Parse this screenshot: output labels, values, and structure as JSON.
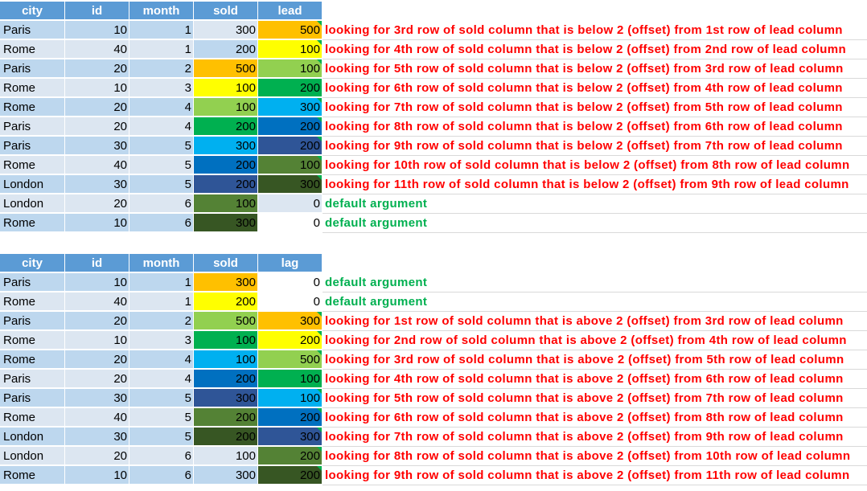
{
  "table1": {
    "headers": [
      "city",
      "id",
      "month",
      "sold",
      "lead"
    ],
    "rows": [
      {
        "city": "Paris",
        "id": "10",
        "month": "1",
        "sold": "300",
        "val": "500",
        "sold_color": "#dce6f1",
        "val_color": "#ffc000",
        "note": "looking for 3rd row of sold column that is below 2 (offset) from 1st row of lead column",
        "note_color": "red"
      },
      {
        "city": "Rome",
        "id": "40",
        "month": "1",
        "sold": "200",
        "val": "100",
        "sold_color": "#bdd7ee",
        "val_color": "#ffff00",
        "note": "looking for 4th row of sold column that is below 2 (offset) from 2nd row of lead column",
        "note_color": "red"
      },
      {
        "city": "Paris",
        "id": "20",
        "month": "2",
        "sold": "500",
        "val": "100",
        "sold_color": "#ffc000",
        "val_color": "#92d050",
        "note": "looking for 5th  row of sold column that is below 2 (offset) from 3rd row of lead column",
        "note_color": "red"
      },
      {
        "city": "Rome",
        "id": "10",
        "month": "3",
        "sold": "100",
        "val": "200",
        "sold_color": "#ffff00",
        "val_color": "#00b050",
        "note": "looking for 6th row of sold column that is below 2 (offset) from 4th row of lead column",
        "note_color": "red"
      },
      {
        "city": "Rome",
        "id": "20",
        "month": "4",
        "sold": "100",
        "val": "300",
        "sold_color": "#92d050",
        "val_color": "#00b0f0",
        "note": "looking for 7th row of sold column that is below 2 (offset) from 5th row of lead column",
        "note_color": "red"
      },
      {
        "city": "Paris",
        "id": "20",
        "month": "4",
        "sold": "200",
        "val": "200",
        "sold_color": "#00b050",
        "val_color": "#0070c0",
        "note": "looking for 8th row of sold column that is below 2 (offset) from 6th row of lead column",
        "note_color": "red"
      },
      {
        "city": "Paris",
        "id": "30",
        "month": "5",
        "sold": "300",
        "val": "200",
        "sold_color": "#00b0f0",
        "val_color": "#2f5597",
        "note": "looking for 9th row of sold column that is below 2 (offset) from 7th row of lead column",
        "note_color": "red"
      },
      {
        "city": "Rome",
        "id": "40",
        "month": "5",
        "sold": "200",
        "val": "100",
        "sold_color": "#0070c0",
        "val_color": "#548235",
        "note": "looking for 10th row of sold column that is below 2 (offset) from 8th row of lead column",
        "note_color": "red"
      },
      {
        "city": "London",
        "id": "30",
        "month": "5",
        "sold": "200",
        "val": "300",
        "sold_color": "#2f5597",
        "val_color": "#375623",
        "note": "looking for 11th row of sold column that is below 2 (offset) from 9th row of lead column",
        "note_color": "red"
      },
      {
        "city": "London",
        "id": "20",
        "month": "6",
        "sold": "100",
        "val": "0",
        "sold_color": "#548235",
        "val_color": "#dce6f1",
        "note": "default argument",
        "note_color": "green"
      },
      {
        "city": "Rome",
        "id": "10",
        "month": "6",
        "sold": "300",
        "val": "0",
        "sold_color": "#375623",
        "val_color": "#ffffff",
        "note": "default argument",
        "note_color": "green"
      }
    ]
  },
  "table2": {
    "headers": [
      "city",
      "id",
      "month",
      "sold",
      "lag"
    ],
    "rows": [
      {
        "city": "Paris",
        "id": "10",
        "month": "1",
        "sold": "300",
        "val": "0",
        "sold_color": "#ffc000",
        "val_color": "#ffffff",
        "note": "default argument",
        "note_color": "green"
      },
      {
        "city": "Rome",
        "id": "40",
        "month": "1",
        "sold": "200",
        "val": "0",
        "sold_color": "#ffff00",
        "val_color": "#ffffff",
        "note": "default argument",
        "note_color": "green"
      },
      {
        "city": "Paris",
        "id": "20",
        "month": "2",
        "sold": "500",
        "val": "300",
        "sold_color": "#92d050",
        "val_color": "#ffc000",
        "note": "looking for 1st row of sold column that is above 2 (offset) from 3rd row of lead column",
        "note_color": "red"
      },
      {
        "city": "Rome",
        "id": "10",
        "month": "3",
        "sold": "100",
        "val": "200",
        "sold_color": "#00b050",
        "val_color": "#ffff00",
        "note": "looking for 2nd row of sold column that is above 2 (offset) from 4th row of lead column",
        "note_color": "red"
      },
      {
        "city": "Rome",
        "id": "20",
        "month": "4",
        "sold": "100",
        "val": "500",
        "sold_color": "#00b0f0",
        "val_color": "#92d050",
        "note": "looking for 3rd row of sold column that is above 2 (offset) from 5th row of lead column",
        "note_color": "red"
      },
      {
        "city": "Paris",
        "id": "20",
        "month": "4",
        "sold": "200",
        "val": "100",
        "sold_color": "#0070c0",
        "val_color": "#00b050",
        "note": "looking for 4th row of sold column that is above 2 (offset) from 6th row of lead column",
        "note_color": "red"
      },
      {
        "city": "Paris",
        "id": "30",
        "month": "5",
        "sold": "300",
        "val": "100",
        "sold_color": "#2f5597",
        "val_color": "#00b0f0",
        "note": "looking for 5th row of sold column that is above 2 (offset) from 7th row of lead column",
        "note_color": "red"
      },
      {
        "city": "Rome",
        "id": "40",
        "month": "5",
        "sold": "200",
        "val": "200",
        "sold_color": "#548235",
        "val_color": "#0070c0",
        "note": "looking for 6th row of sold column that is above 2 (offset) from 8th row of lead column",
        "note_color": "red"
      },
      {
        "city": "London",
        "id": "30",
        "month": "5",
        "sold": "200",
        "val": "300",
        "sold_color": "#375623",
        "val_color": "#2f5597",
        "note": "looking for 7th row of sold column that is above 2 (offset) from 9th row of lead column",
        "note_color": "red"
      },
      {
        "city": "London",
        "id": "20",
        "month": "6",
        "sold": "100",
        "val": "200",
        "sold_color": "#dce6f1",
        "val_color": "#548235",
        "note": "looking for 8th row of sold column that is above 2 (offset) from 10th row of lead column",
        "note_color": "red"
      },
      {
        "city": "Rome",
        "id": "10",
        "month": "6",
        "sold": "300",
        "val": "200",
        "sold_color": "#bdd7ee",
        "val_color": "#375623",
        "note": "looking for 9th row of sold column that is above 2 (offset) from 11th row of lead column",
        "note_color": "red"
      }
    ]
  },
  "colors": {
    "header_bg": "#5b9bd5",
    "row_light": "#dce6f1",
    "row_dark": "#bdd7ee",
    "note_red": "#ff0000",
    "note_green": "#00b050"
  }
}
